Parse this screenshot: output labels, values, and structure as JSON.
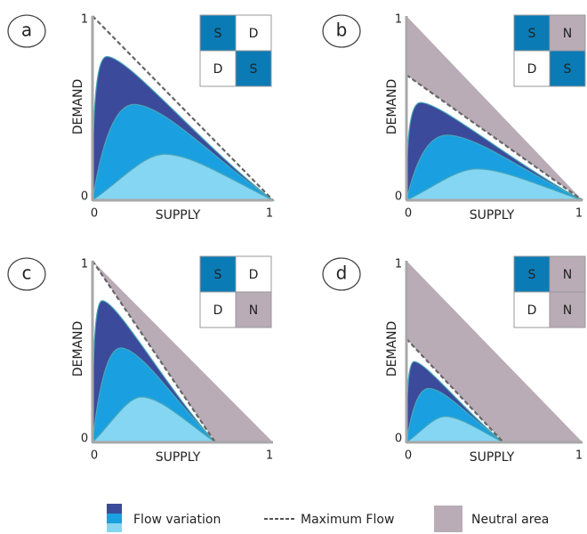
{
  "panels": [
    {
      "label": "a",
      "x_label": "SUPPLY",
      "y_label": "DEMAND",
      "x_ticks": [
        "0",
        "1"
      ],
      "y_ticks": [
        "0",
        "1"
      ],
      "grid": [
        [
          "S",
          "D"
        ],
        [
          "D",
          "S"
        ]
      ]
    },
    {
      "label": "b",
      "x_label": "SUPPLY",
      "y_label": "DEMAND",
      "x_ticks": [
        "0",
        "1"
      ],
      "y_ticks": [
        "0",
        "1"
      ],
      "grid": [
        [
          "S",
          "N"
        ],
        [
          "D",
          "S"
        ]
      ]
    },
    {
      "label": "c",
      "x_label": "SUPPLY",
      "y_label": "DEMAND",
      "x_ticks": [
        "0",
        "1"
      ],
      "y_ticks": [
        "0",
        "1"
      ],
      "grid": [
        [
          "S",
          "D"
        ],
        [
          "D",
          "N"
        ]
      ]
    },
    {
      "label": "d",
      "x_label": "SUPPLY",
      "y_label": "DEMAND",
      "x_ticks": [
        "0",
        "1"
      ],
      "y_ticks": [
        "0",
        "1"
      ],
      "grid": [
        [
          "S",
          "N"
        ],
        [
          "D",
          "N"
        ]
      ]
    }
  ],
  "legend": [
    "Flow variation",
    "Maximum Flow",
    "Neutral area"
  ]
}
